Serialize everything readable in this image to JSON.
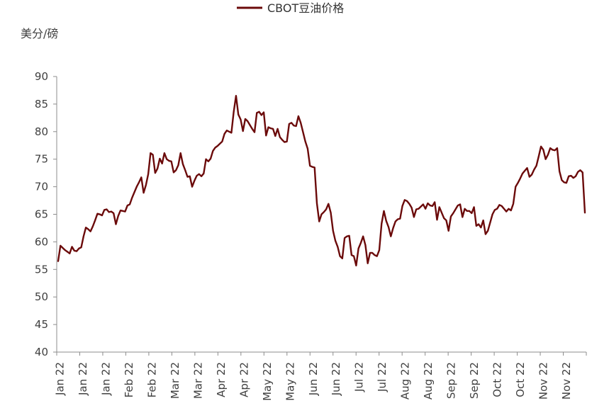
{
  "chart_data": {
    "type": "line",
    "unit_label": "美分/磅",
    "legend_position": "top-center",
    "grid": false,
    "ylim": [
      40,
      90
    ],
    "y_ticks": [
      40,
      45,
      50,
      55,
      60,
      65,
      70,
      75,
      80,
      85,
      90
    ],
    "x_tick_labels": [
      "Jan 22",
      "Jan 22",
      "Jan 22",
      "Feb 22",
      "Feb 22",
      "Mar 22",
      "Mar 22",
      "Apr 22",
      "Apr 22",
      "May 22",
      "May 22",
      "Jun 22",
      "Jun 22",
      "Jul 22",
      "Jul 22",
      "Aug 22",
      "Aug 22",
      "Sep 22",
      "Sep 22",
      "Oct 22",
      "Oct 22",
      "Nov 22",
      "Nov 22"
    ],
    "series": [
      {
        "name": "CBOT豆油价格",
        "color": "#6b0a0a",
        "values": [
          56.5,
          59.3,
          58.9,
          58.5,
          58.2,
          57.9,
          59.1,
          58.4,
          58.3,
          58.8,
          59.0,
          61.0,
          62.6,
          62.3,
          61.9,
          62.8,
          63.9,
          65.1,
          65.0,
          64.8,
          65.8,
          65.9,
          65.4,
          65.5,
          65.2,
          63.2,
          64.7,
          65.7,
          65.6,
          65.5,
          66.6,
          66.8,
          68.0,
          69.0,
          70.0,
          70.8,
          71.7,
          68.9,
          70.3,
          72.3,
          76.1,
          75.8,
          72.5,
          73.3,
          75.1,
          74.2,
          76.1,
          75.0,
          74.7,
          74.6,
          72.6,
          73.0,
          73.9,
          76.1,
          74.1,
          73.0,
          71.8,
          71.9,
          70.0,
          71.1,
          72.0,
          72.3,
          71.9,
          72.4,
          75.0,
          74.6,
          75.1,
          76.5,
          77.1,
          77.4,
          77.8,
          78.2,
          79.6,
          80.2,
          80.0,
          79.8,
          83.6,
          86.5,
          83.1,
          82.2,
          80.1,
          82.3,
          81.9,
          81.2,
          80.5,
          79.9,
          83.4,
          83.6,
          83.0,
          83.5,
          79.3,
          80.8,
          80.6,
          80.5,
          79.2,
          80.5,
          79.0,
          78.5,
          78.1,
          78.2,
          81.4,
          81.6,
          81.1,
          81.0,
          82.8,
          81.6,
          79.9,
          78.2,
          76.9,
          73.8,
          73.6,
          73.5,
          67.0,
          63.7,
          65.0,
          65.4,
          65.9,
          66.9,
          65.3,
          62.0,
          60.2,
          59.1,
          57.4,
          57.0,
          60.7,
          61.0,
          61.1,
          57.6,
          57.4,
          55.7,
          58.8,
          59.8,
          61.0,
          59.4,
          56.1,
          58.0,
          58.0,
          57.6,
          57.4,
          58.5,
          63.3,
          65.6,
          63.8,
          62.7,
          61.0,
          62.5,
          63.7,
          64.1,
          64.2,
          66.5,
          67.6,
          67.4,
          66.9,
          66.2,
          64.5,
          65.9,
          66.0,
          66.4,
          66.8,
          66.0,
          67.0,
          66.6,
          66.5,
          67.2,
          64.0,
          66.3,
          65.3,
          64.3,
          63.9,
          62.0,
          64.6,
          65.2,
          65.9,
          66.6,
          66.8,
          64.5,
          66.0,
          65.6,
          65.6,
          65.2,
          66.3,
          62.9,
          63.2,
          62.6,
          63.9,
          61.4,
          62.0,
          63.5,
          65.0,
          65.8,
          66.0,
          66.7,
          66.5,
          66.0,
          65.5,
          66.0,
          65.7,
          66.9,
          70.0,
          70.7,
          71.5,
          72.4,
          72.9,
          73.4,
          71.8,
          72.2,
          73.1,
          73.8,
          75.5,
          77.3,
          76.7,
          75.0,
          75.8,
          77.0,
          76.7,
          76.6,
          77.0,
          72.8,
          71.2,
          70.8,
          70.7,
          71.9,
          72.0,
          71.6,
          71.9,
          72.7,
          73.0,
          72.6,
          65.3
        ]
      }
    ]
  }
}
